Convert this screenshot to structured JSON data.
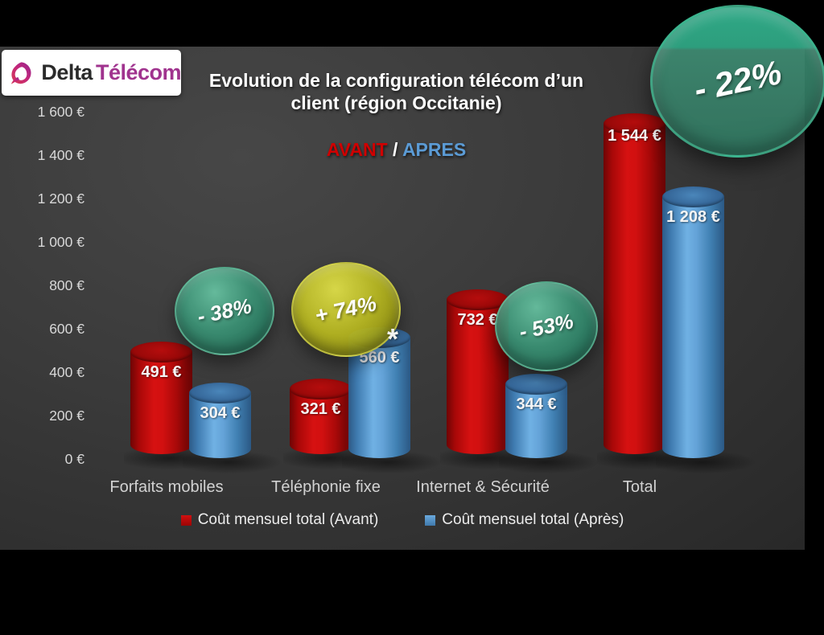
{
  "logo": {
    "brand_first": "Delta",
    "brand_second": "Télécom"
  },
  "header": {
    "title_line1": "Evolution de la configuration télécom d’un",
    "title_line2": "client (région Occitanie)",
    "subtitle_before": "AVANT",
    "subtitle_sep": " / ",
    "subtitle_after": "APRES"
  },
  "chart_data": {
    "type": "bar",
    "style": "3d-cylinders",
    "title": "Evolution de la configuration télécom d’un client (région Occitanie)",
    "categories": [
      "Forfaits mobiles",
      "Téléphonie fixe",
      "Internet & Sécurité",
      "Total"
    ],
    "series": [
      {
        "name": "Coût mensuel total (Avant)",
        "color": "#c00000",
        "values": [
          491,
          321,
          732,
          1544
        ],
        "value_labels": [
          "491 €",
          "321 €",
          "732 €",
          "1 544 €"
        ]
      },
      {
        "name": "Coût mensuel total (Après)",
        "color": "#5b9bd5",
        "values": [
          304,
          560,
          344,
          1208
        ],
        "value_labels": [
          "304 €",
          "560 €",
          "344 €",
          "1 208 €"
        ]
      }
    ],
    "badges": [
      {
        "text": "- 38%",
        "scheme": "green",
        "category": "Forfaits mobiles"
      },
      {
        "text": "+ 74%",
        "scheme": "yellow",
        "category": "Téléphonie fixe"
      },
      {
        "text": "- 53%",
        "scheme": "green",
        "category": "Internet & Sécurité"
      },
      {
        "text": "- 22%",
        "scheme": "green-large",
        "category": "Total"
      }
    ],
    "annotations": [
      {
        "text": "*",
        "category": "Téléphonie fixe",
        "series": "Coût mensuel total (Après)"
      }
    ],
    "y_axis": {
      "unit": "€",
      "ylim": [
        0,
        1600
      ],
      "ticks": [
        {
          "value": 1600,
          "label": "1 600 €"
        },
        {
          "value": 1400,
          "label": "1 400 €"
        },
        {
          "value": 1200,
          "label": "1 200 €"
        },
        {
          "value": 1000,
          "label": "1 000 €"
        },
        {
          "value": 800,
          "label": "800 €"
        },
        {
          "value": 600,
          "label": "600 €"
        },
        {
          "value": 400,
          "label": "400 €"
        },
        {
          "value": 200,
          "label": "200 €"
        },
        {
          "value": 0,
          "label": "0 €"
        }
      ]
    },
    "legend": {
      "position": "bottom",
      "entries": [
        {
          "label": "Coût mensuel total (Avant)",
          "color": "#c00000"
        },
        {
          "label": "Coût mensuel total (Après)",
          "color": "#5b9bd5"
        }
      ]
    },
    "grid": false
  },
  "colors": {
    "avant": "#c00000",
    "apres": "#5b9bd5",
    "background_outer": "#000000",
    "background_chart": "#3a3a3a"
  }
}
